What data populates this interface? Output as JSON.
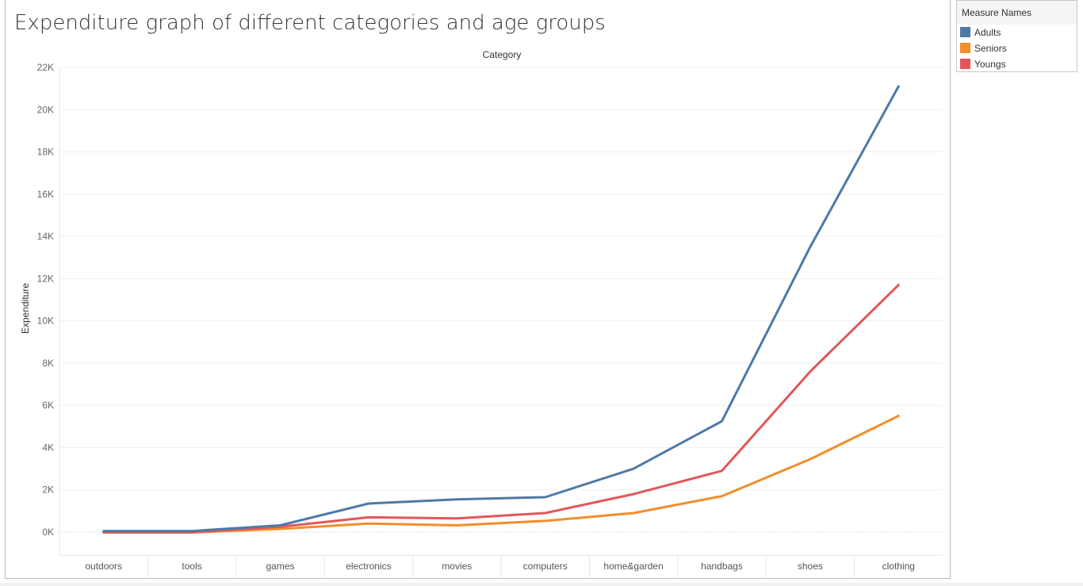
{
  "chart_data": {
    "type": "line",
    "title": "Expenditure graph of different categories and age groups",
    "xlabel": "Category",
    "ylabel": "Expenditure",
    "categories": [
      "outdoors",
      "tools",
      "games",
      "electronics",
      "movies",
      "computers",
      "home&garden",
      "handbags",
      "shoes",
      "clothing"
    ],
    "ylim": [
      -1100,
      22000
    ],
    "yticks": [
      0,
      2000,
      4000,
      6000,
      8000,
      10000,
      12000,
      14000,
      16000,
      18000,
      20000,
      22000
    ],
    "ytick_labels": [
      "0K",
      "2K",
      "4K",
      "6K",
      "8K",
      "10K",
      "12K",
      "14K",
      "16K",
      "18K",
      "20K",
      "22K"
    ],
    "grid": true,
    "legend_title": "Measure Names",
    "legend_position": "top-right, outside",
    "series": [
      {
        "name": "Adults",
        "color": "#4e79a7",
        "values": [
          50,
          50,
          320,
          1350,
          1550,
          1650,
          3000,
          5250,
          13500,
          21100
        ]
      },
      {
        "name": "Seniors",
        "color": "#f28e2b",
        "values": [
          -20,
          -20,
          150,
          400,
          320,
          530,
          900,
          1700,
          3450,
          5500
        ]
      },
      {
        "name": "Youngs",
        "color": "#e15759",
        "values": [
          -10,
          -10,
          250,
          700,
          650,
          900,
          1800,
          2900,
          7600,
          11700
        ]
      }
    ]
  }
}
